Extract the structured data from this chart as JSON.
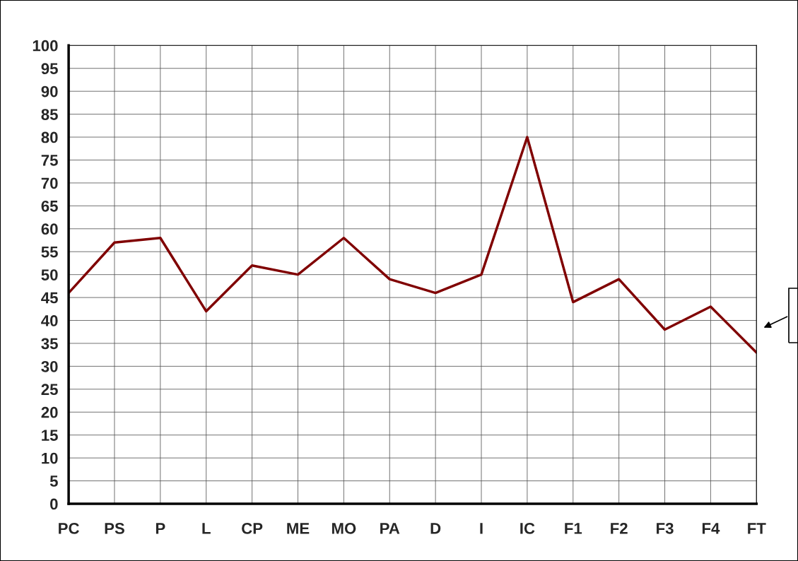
{
  "chart_data": {
    "type": "line",
    "categories": [
      "PC",
      "PS",
      "P",
      "L",
      "CP",
      "ME",
      "MO",
      "PA",
      "D",
      "I",
      "IC",
      "F1",
      "F2",
      "F3",
      "F4",
      "FT"
    ],
    "series": [
      {
        "color": "#800000",
        "values": [
          46,
          57,
          58,
          42,
          52,
          50,
          58,
          49,
          46,
          50,
          80,
          44,
          49,
          38,
          43,
          33
        ]
      }
    ],
    "ylim": [
      0,
      100
    ],
    "yticks": [
      0,
      5,
      10,
      15,
      20,
      25,
      30,
      35,
      40,
      45,
      50,
      55,
      60,
      65,
      70,
      75,
      80,
      85,
      90,
      95,
      100
    ],
    "grid": true,
    "marker": "none",
    "line_style": "solid"
  }
}
